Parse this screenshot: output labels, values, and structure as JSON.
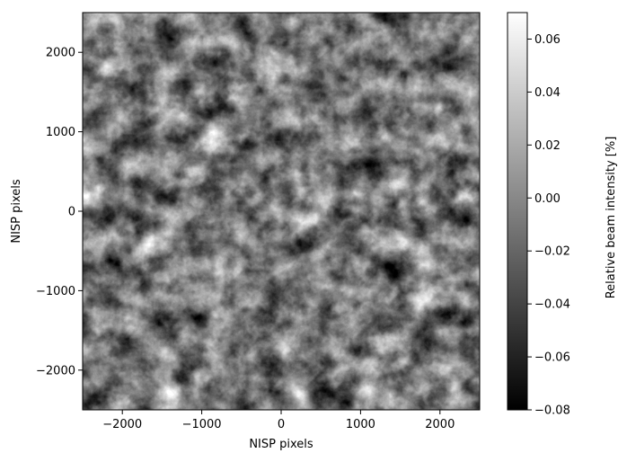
{
  "chart_data": {
    "type": "heatmap",
    "xlabel": "NISP pixels",
    "ylabel": "NISP pixels",
    "colorbar_label": "Relative beam intensity [%]",
    "colormap": "grayscale",
    "xlim": [
      -2500,
      2500
    ],
    "ylim": [
      -2500,
      2500
    ],
    "xticks": [
      -2000,
      -1000,
      0,
      1000,
      2000
    ],
    "xtick_labels": [
      "−2000",
      "−1000",
      "0",
      "1000",
      "2000"
    ],
    "yticks": [
      -2000,
      -1000,
      0,
      1000,
      2000
    ],
    "ytick_labels": [
      "−2000",
      "−1000",
      "0",
      "1000",
      "2000"
    ],
    "colorbar_range": [
      -0.08,
      0.07
    ],
    "colorbar_ticks": [
      -0.08,
      -0.06,
      -0.04,
      -0.02,
      0.0,
      0.02,
      0.04,
      0.06
    ],
    "colorbar_tick_labels": [
      "−0.08",
      "−0.06",
      "−0.04",
      "−0.02",
      "0.00",
      "0.02",
      "0.04",
      "0.06"
    ],
    "colors": {
      "low": "#000000",
      "high": "#ffffff",
      "map_mid": "#7a7a7a"
    }
  }
}
